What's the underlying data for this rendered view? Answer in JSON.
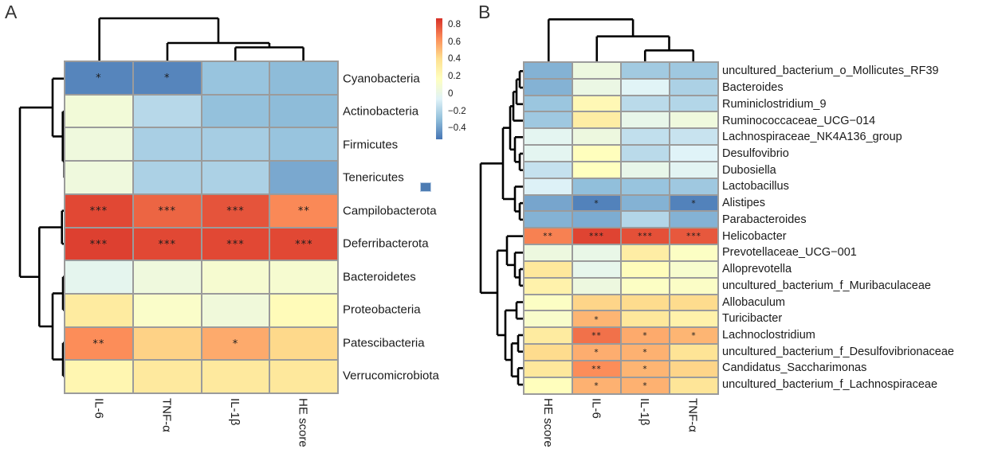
{
  "legend": {
    "ticks": [
      "0.8",
      "0.6",
      "0.4",
      "0.2",
      "0",
      "−0.2",
      "−0.4"
    ],
    "vmin": -0.52,
    "vmax": 0.86,
    "gradient_stops": [
      "#4575b4",
      "#91bfdb",
      "#e0f3f8",
      "#ffffbf",
      "#fee090",
      "#fc8d59",
      "#d73027"
    ],
    "artifact_square_color": "#4d7cb3"
  },
  "chart_data": [
    {
      "type": "heatmap",
      "panel": "A",
      "columns": [
        "IL-6",
        "TNF-α",
        "IL-1β",
        "HE score"
      ],
      "rows": [
        "Cyanobacteria",
        "Actinobacteria",
        "Firmicutes",
        "Tenericutes",
        "Campilobacterota",
        "Deferribacterota",
        "Bacteroidetes",
        "Proteobacteria",
        "Patescibacteria",
        "Verrucomicrobiota"
      ],
      "values": [
        [
          -0.47,
          -0.47,
          -0.27,
          -0.3
        ],
        [
          0.07,
          -0.18,
          -0.28,
          -0.3
        ],
        [
          0.05,
          -0.22,
          -0.23,
          -0.27
        ],
        [
          0.05,
          -0.21,
          -0.21,
          -0.36
        ],
        [
          0.8,
          0.73,
          0.77,
          0.64
        ],
        [
          0.82,
          0.8,
          0.8,
          0.8
        ],
        [
          -0.02,
          0.05,
          0.1,
          0.1
        ],
        [
          0.32,
          0.13,
          0.06,
          0.2
        ],
        [
          0.63,
          0.44,
          0.55,
          0.42
        ],
        [
          0.24,
          0.33,
          0.33,
          0.34
        ]
      ],
      "significance": [
        [
          "*",
          "*",
          "",
          ""
        ],
        [
          "",
          "",
          "",
          ""
        ],
        [
          "",
          "",
          "",
          ""
        ],
        [
          "",
          "",
          "",
          ""
        ],
        [
          "***",
          "***",
          "***",
          "**"
        ],
        [
          "***",
          "***",
          "***",
          "***"
        ],
        [
          "",
          "",
          "",
          ""
        ],
        [
          "",
          "",
          "",
          ""
        ],
        [
          "**",
          "",
          "*",
          ""
        ],
        [
          "",
          "",
          "",
          ""
        ]
      ],
      "col_tree": {
        "j": 23,
        "c": [
          0,
          {
            "j": 54,
            "c": [
              1,
              {
                "j": 59.5,
                "c": [
                  2,
                  3
                ]
              }
            ]
          }
        ]
      },
      "row_tree": {
        "j": 25,
        "c": [
          {
            "j": 66,
            "c": [
              0,
              {
                "j": 78.7,
                "c": [
                  1,
                  {
                    "j": 80.7,
                    "c": [
                      2,
                      3
                    ]
                  }
                ]
              }
            ]
          },
          {
            "j": 49.3,
            "c": [
              {
                "j": 77.7,
                "c": [
                  4,
                  5
                ]
              },
              {
                "j": 66,
                "c": [
                  {
                    "j": 79,
                    "c": [
                      6,
                      7
                    ]
                  },
                  {
                    "j": 79,
                    "c": [
                      8,
                      9
                    ]
                  }
                ]
              }
            ]
          }
        ]
      }
    },
    {
      "type": "heatmap",
      "panel": "B",
      "columns": [
        "HE score",
        "IL-6",
        "IL-1β",
        "TNF-α"
      ],
      "rows": [
        "uncultured_bacterium_o_Mollicutes_RF39",
        "Bacteroides",
        "Ruminiclostridium_9",
        "Ruminococcaceae_UCG−014",
        "Lachnospiraceae_NK4A136_group",
        "Desulfovibrio",
        "Dubosiella",
        "Lactobacillus",
        "Alistipes",
        "Parabacteroides",
        "Helicobacter",
        "Prevotellaceae_UCG−001",
        "Alloprevotella",
        "uncultured_bacterium_f_Muribaculaceae",
        "Allobaculum",
        "Turicibacter",
        "Lachnoclostridium",
        "uncultured_bacterium_f_Desulfovibrionaceae",
        "Candidatus_Saccharimonas",
        "uncultured_bacterium_f_Lachnospiraceae"
      ],
      "values": [
        [
          -0.33,
          0.04,
          -0.24,
          -0.25
        ],
        [
          -0.33,
          0.02,
          -0.05,
          -0.21
        ],
        [
          -0.26,
          0.22,
          -0.17,
          -0.19
        ],
        [
          -0.25,
          0.3,
          0.0,
          0.05
        ],
        [
          -0.03,
          0.04,
          -0.15,
          -0.13
        ],
        [
          -0.03,
          0.18,
          -0.17,
          -0.06
        ],
        [
          -0.14,
          0.17,
          0.0,
          -0.04
        ],
        [
          -0.07,
          -0.29,
          -0.27,
          -0.25
        ],
        [
          -0.37,
          -0.48,
          -0.33,
          -0.48
        ],
        [
          -0.33,
          -0.35,
          -0.19,
          -0.33
        ],
        [
          0.66,
          0.81,
          0.78,
          0.76
        ],
        [
          0.04,
          0.01,
          0.3,
          0.15
        ],
        [
          0.34,
          -0.01,
          0.19,
          0.11
        ],
        [
          0.27,
          0.04,
          0.15,
          0.14
        ],
        [
          0.15,
          0.43,
          0.41,
          0.41
        ],
        [
          0.12,
          0.52,
          0.34,
          0.27
        ],
        [
          0.32,
          0.7,
          0.55,
          0.52
        ],
        [
          0.41,
          0.54,
          0.53,
          0.37
        ],
        [
          0.34,
          0.63,
          0.52,
          0.43
        ],
        [
          0.18,
          0.53,
          0.53,
          0.36
        ]
      ],
      "significance": [
        [
          "",
          "",
          "",
          ""
        ],
        [
          "",
          "",
          "",
          ""
        ],
        [
          "",
          "",
          "",
          ""
        ],
        [
          "",
          "",
          "",
          ""
        ],
        [
          "",
          "",
          "",
          ""
        ],
        [
          "",
          "",
          "",
          ""
        ],
        [
          "",
          "",
          "",
          ""
        ],
        [
          "",
          "",
          "",
          ""
        ],
        [
          "",
          "*",
          "",
          "*"
        ],
        [
          "",
          "",
          "",
          ""
        ],
        [
          "**",
          "***",
          "***",
          "***"
        ],
        [
          "",
          "",
          "",
          ""
        ],
        [
          "",
          "",
          "",
          ""
        ],
        [
          "",
          "",
          "",
          ""
        ],
        [
          "",
          "",
          "",
          ""
        ],
        [
          "",
          "*",
          "",
          ""
        ],
        [
          "",
          "**",
          "*",
          "*"
        ],
        [
          "",
          "*",
          "*",
          ""
        ],
        [
          "",
          "**",
          "*",
          ""
        ],
        [
          "",
          "*",
          "*",
          ""
        ]
      ],
      "col_tree": {
        "j": 24.3,
        "c": [
          0,
          {
            "j": 45.7,
            "c": [
              1,
              {
                "j": 63.3,
                "c": [
                  2,
                  3
                ]
              }
            ]
          }
        ]
      },
      "row_tree": {
        "j": 603,
        "c": [
          {
            "j": 631,
            "c": [
              {
                "j": 640,
                "c": [
                  {
                    "j": 644,
                    "c": [
                      {
                        "j": 648,
                        "c": [
                          {
                            "j": 652,
                            "c": [
                              0,
                              1
                            ]
                          },
                          2
                        ]
                      },
                      3
                    ]
                  },
                  {
                    "j": 646,
                    "c": [
                      4,
                      {
                        "j": 652,
                        "c": [
                          5,
                          6
                        ]
                      }
                    ]
                  }
                ]
              },
              {
                "j": 646,
                "c": [
                  7,
                  {
                    "j": 652,
                    "c": [
                      8,
                      9
                    ]
                  }
                ]
              }
            ]
          },
          {
            "j": 624,
            "c": [
              {
                "j": 636,
                "c": [
                  10,
                  {
                    "j": 646,
                    "c": [
                      11,
                      {
                        "j": 652,
                        "c": [
                          12,
                          13
                        ]
                      }
                    ]
                  }
                ]
              },
              {
                "j": 634,
                "c": [
                  {
                    "j": 648,
                    "c": [
                      14,
                      15
                    ]
                  },
                  {
                    "j": 642,
                    "c": [
                      {
                        "j": 650,
                        "c": [
                          16,
                          17
                        ]
                      },
                      {
                        "j": 650,
                        "c": [
                          18,
                          19
                        ]
                      }
                    ]
                  }
                ]
              }
            ]
          }
        ]
      }
    }
  ]
}
